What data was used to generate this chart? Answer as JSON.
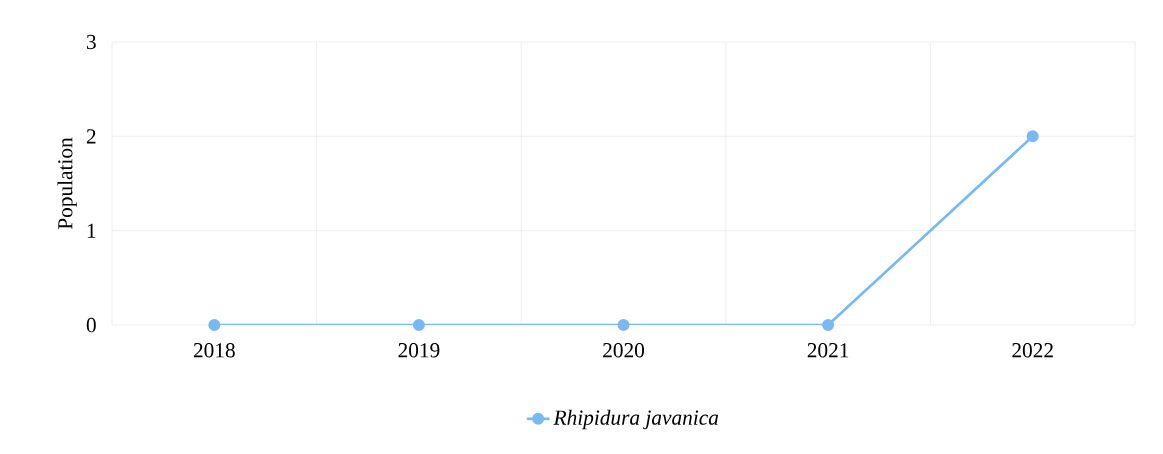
{
  "chart_data": {
    "type": "line",
    "ylabel": "Population",
    "categories": [
      "2018",
      "2019",
      "2020",
      "2021",
      "2022"
    ],
    "series": [
      {
        "name": "Rhipidura javanica",
        "color": "#7ab8f0",
        "values": [
          0,
          0,
          0,
          0,
          2
        ]
      }
    ],
    "ylim": [
      0,
      3
    ],
    "yticks": [
      0,
      1,
      2,
      3
    ],
    "grid": true,
    "legend": "bottom",
    "marker": "circle",
    "line_style": "solid"
  }
}
